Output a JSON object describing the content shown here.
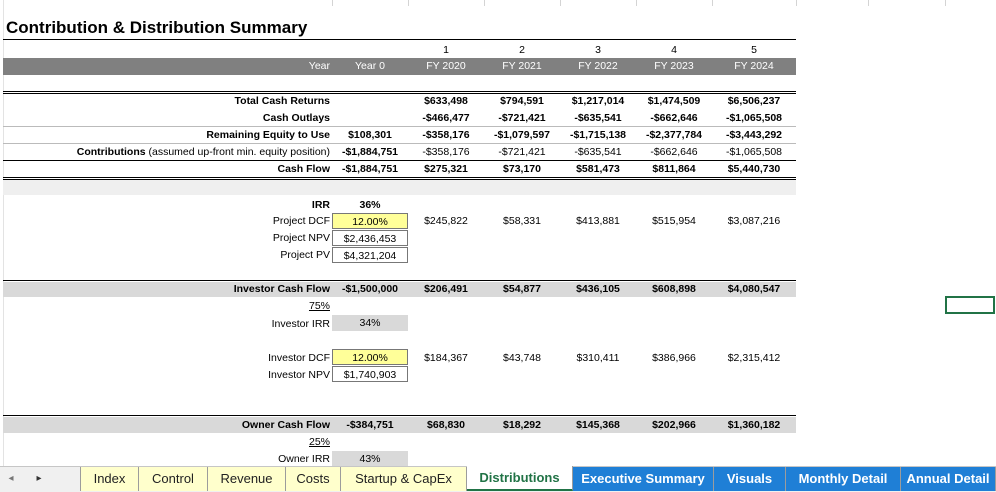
{
  "title": "Contribution & Distribution Summary",
  "header": {
    "year_label": "Year",
    "year0_label": "Year 0",
    "periods": [
      "1",
      "2",
      "3",
      "4",
      "5"
    ],
    "fiscal_years": [
      "FY 2020",
      "FY 2021",
      "FY 2022",
      "FY 2023",
      "FY 2024"
    ]
  },
  "summary": {
    "total_cash_returns": {
      "label": "Total Cash Returns",
      "year0": "",
      "values": [
        "$633,498",
        "$794,591",
        "$1,217,014",
        "$1,474,509",
        "$6,506,237"
      ]
    },
    "cash_outlays": {
      "label": "Cash Outlays",
      "year0": "",
      "values": [
        "-$466,477",
        "-$721,421",
        "-$635,541",
        "-$662,646",
        "-$1,065,508"
      ]
    },
    "remaining_equity": {
      "label": "Remaining Equity to Use",
      "year0": "$108,301",
      "values": [
        "-$358,176",
        "-$1,079,597",
        "-$1,715,138",
        "-$2,377,784",
        "-$3,443,292"
      ]
    },
    "contributions": {
      "label_bold": "Contributions",
      "label_rest": " (assumed up-front min. equity position)",
      "year0": "-$1,884,751",
      "values": [
        "-$358,176",
        "-$721,421",
        "-$635,541",
        "-$662,646",
        "-$1,065,508"
      ]
    },
    "cash_flow": {
      "label": "Cash Flow",
      "year0": "-$1,884,751",
      "values": [
        "$275,321",
        "$73,170",
        "$581,473",
        "$811,864",
        "$5,440,730"
      ]
    }
  },
  "project": {
    "irr_label": "IRR",
    "irr_value": "36%",
    "dcf_label": "Project DCF",
    "dcf_value": "12.00%",
    "npv_label": "Project NPV",
    "npv_value": "$2,436,453",
    "pv_label": "Project PV",
    "pv_value": "$4,321,204",
    "dcf_values": [
      "$245,822",
      "$58,331",
      "$413,881",
      "$515,954",
      "$3,087,216"
    ]
  },
  "investor": {
    "cf_label": "Investor Cash Flow",
    "year0": "-$1,500,000",
    "values": [
      "$206,491",
      "$54,877",
      "$436,105",
      "$608,898",
      "$4,080,547"
    ],
    "share": "75%",
    "irr_label": "Investor IRR",
    "irr_value": "34%",
    "dcf_label": "Investor DCF",
    "dcf_value": "12.00%",
    "npv_label": "Investor NPV",
    "npv_value": "$1,740,903",
    "dcf_values": [
      "$184,367",
      "$43,748",
      "$310,411",
      "$386,966",
      "$2,315,412"
    ]
  },
  "owner": {
    "cf_label": "Owner Cash Flow",
    "year0": "-$384,751",
    "values": [
      "$68,830",
      "$18,292",
      "$145,368",
      "$202,966",
      "$1,360,182"
    ],
    "share": "25%",
    "irr_label": "Owner IRR",
    "irr_value": "43%"
  },
  "tabs": [
    {
      "label": "Index",
      "style": "y"
    },
    {
      "label": "Control",
      "style": "y"
    },
    {
      "label": "Revenue",
      "style": "y"
    },
    {
      "label": "Costs",
      "style": "y"
    },
    {
      "label": "Startup & CapEx",
      "style": "y"
    },
    {
      "label": "Distributions",
      "style": "active"
    },
    {
      "label": "Executive Summary",
      "style": "b"
    },
    {
      "label": "Visuals",
      "style": "b"
    },
    {
      "label": "Monthly Detail",
      "style": "b"
    },
    {
      "label": "Annual Detail",
      "style": "b"
    }
  ],
  "nav": {
    "prev": "◂",
    "next": "▸"
  },
  "colors": {
    "header_band": "#808080",
    "light_band": "#d9d9d9",
    "input_yellow": "#ffff99",
    "tab_yellow": "#ffffcc",
    "tab_blue": "#1f7fd6",
    "excel_green": "#217346"
  }
}
